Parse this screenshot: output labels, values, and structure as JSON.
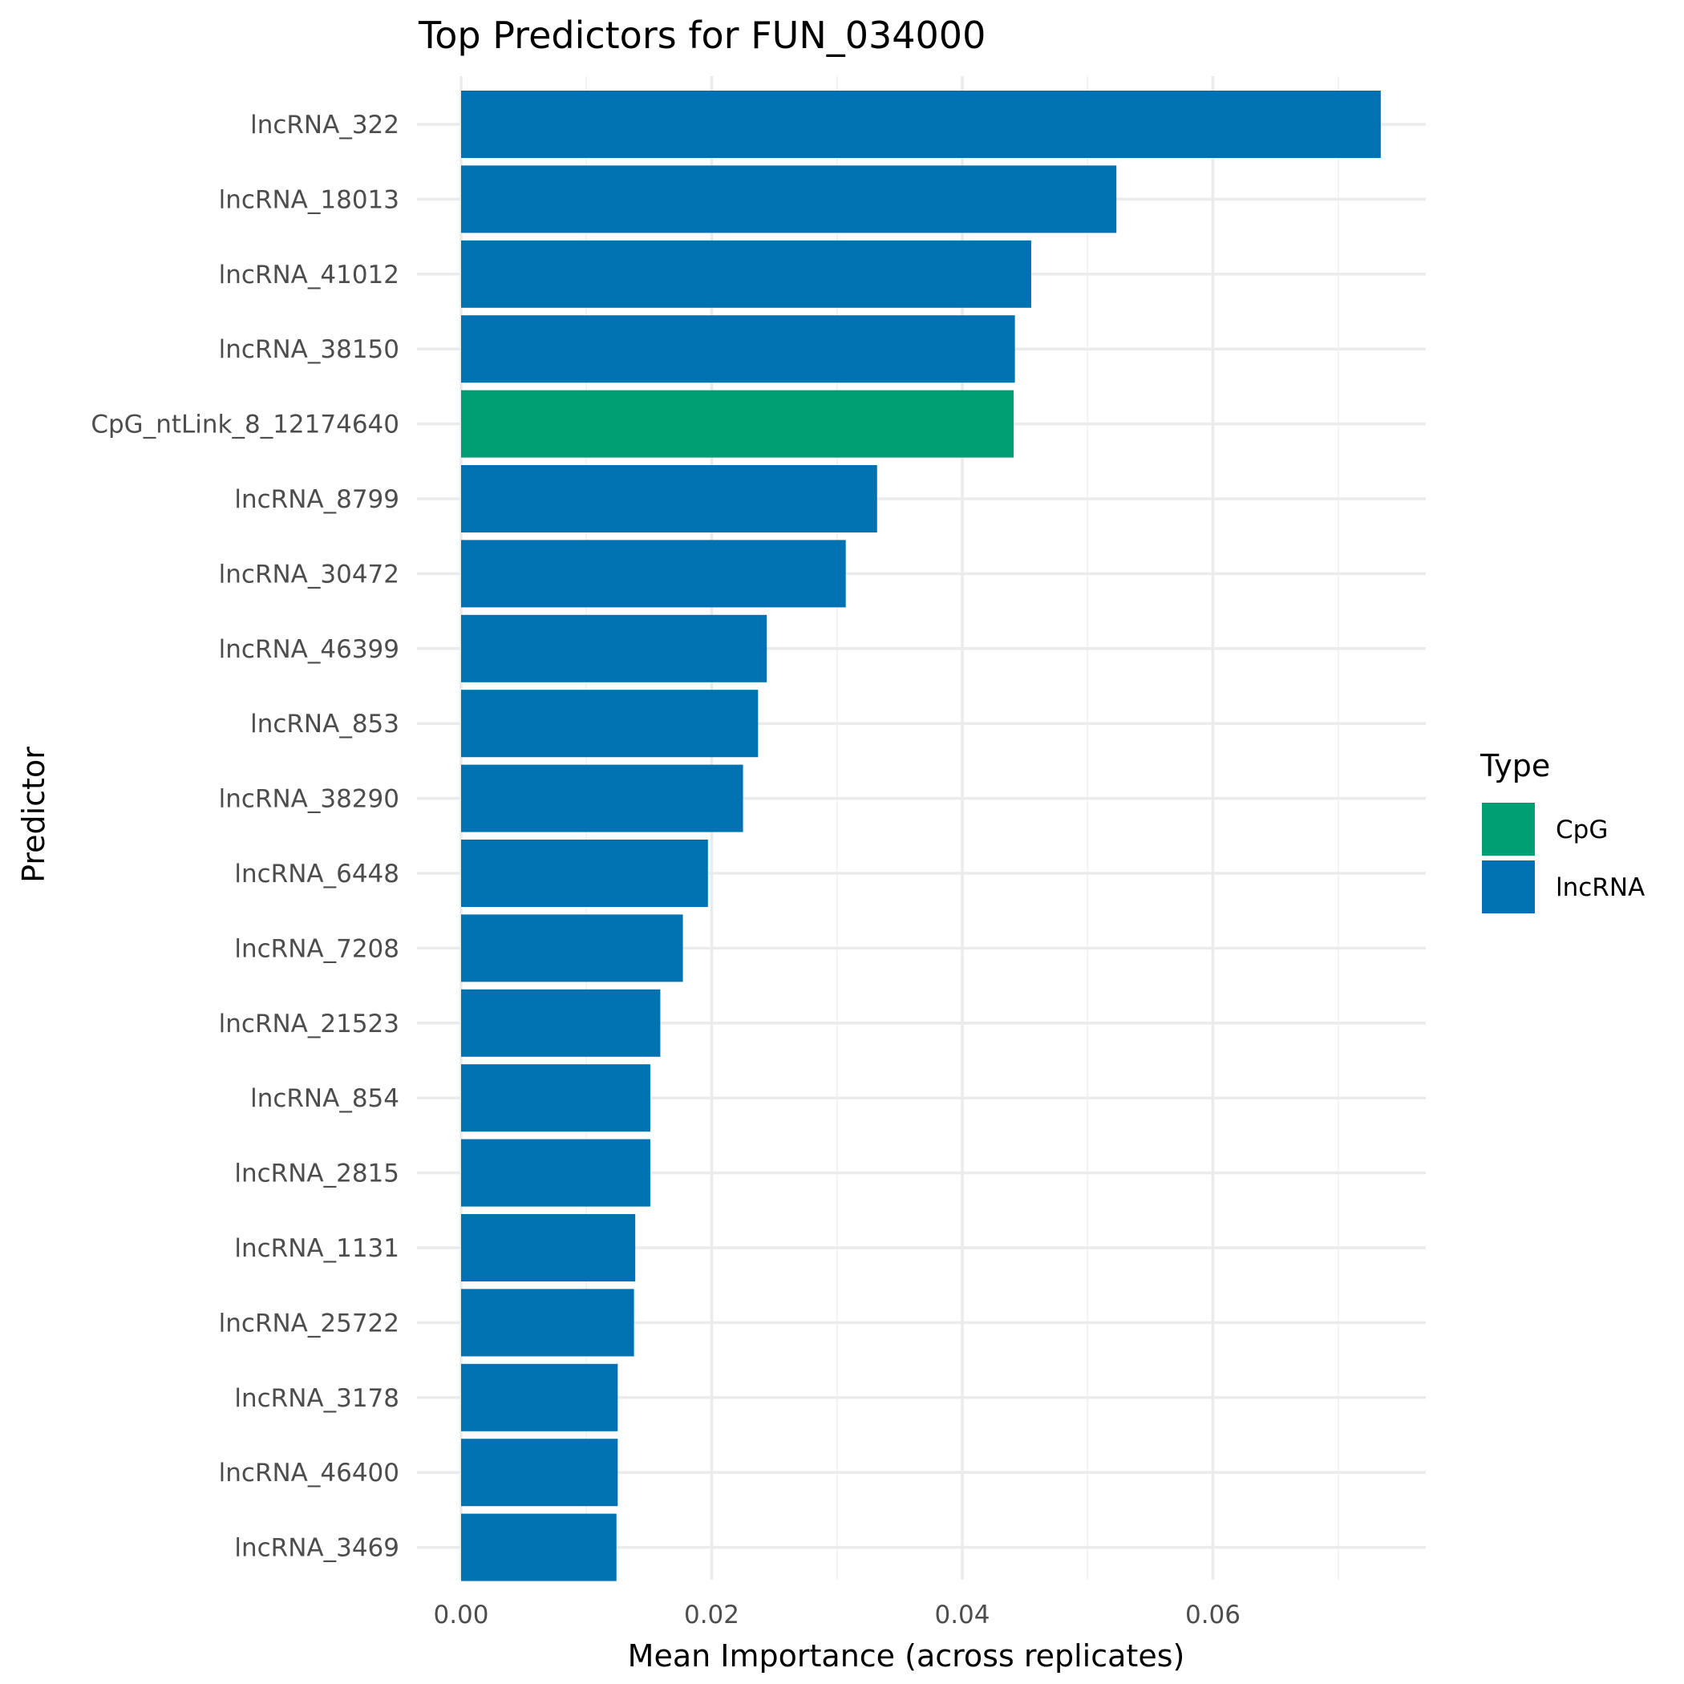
{
  "chart_data": {
    "type": "bar",
    "orientation": "horizontal",
    "title": "Top Predictors for FUN_034000",
    "xlabel": "Mean Importance (across replicates)",
    "ylabel": "Predictor",
    "xlim": [
      0,
      0.0771
    ],
    "x_ticks": [
      "0.00",
      "0.02",
      "0.04",
      "0.06"
    ],
    "x_tick_values": [
      0,
      0.02,
      0.04,
      0.06
    ],
    "grid": true,
    "legend": {
      "title": "Type",
      "placement": "right",
      "entries": [
        {
          "label": "CpG",
          "color": "#009E73"
        },
        {
          "label": "lncRNA",
          "color": "#0072B2"
        }
      ]
    },
    "categories": [
      "lncRNA_322",
      "lncRNA_18013",
      "lncRNA_41012",
      "lncRNA_38150",
      "CpG_ntLink_8_12174640",
      "lncRNA_8799",
      "lncRNA_30472",
      "lncRNA_46399",
      "lncRNA_853",
      "lncRNA_38290",
      "lncRNA_6448",
      "lncRNA_7208",
      "lncRNA_21523",
      "lncRNA_854",
      "lncRNA_2815",
      "lncRNA_1131",
      "lncRNA_25722",
      "lncRNA_3178",
      "lncRNA_46400",
      "lncRNA_3469"
    ],
    "values": [
      0.0734,
      0.0523,
      0.0455,
      0.0442,
      0.0441,
      0.0332,
      0.0307,
      0.0244,
      0.0237,
      0.0225,
      0.0197,
      0.0177,
      0.0159,
      0.0151,
      0.0151,
      0.0139,
      0.0138,
      0.0125,
      0.0125,
      0.0124
    ],
    "types": [
      "lncRNA",
      "lncRNA",
      "lncRNA",
      "lncRNA",
      "CpG",
      "lncRNA",
      "lncRNA",
      "lncRNA",
      "lncRNA",
      "lncRNA",
      "lncRNA",
      "lncRNA",
      "lncRNA",
      "lncRNA",
      "lncRNA",
      "lncRNA",
      "lncRNA",
      "lncRNA",
      "lncRNA",
      "lncRNA"
    ]
  }
}
